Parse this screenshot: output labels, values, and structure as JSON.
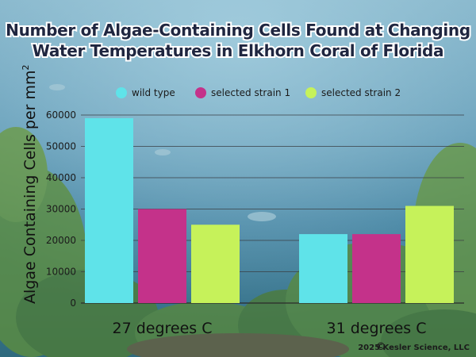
{
  "chart_data": {
    "type": "bar",
    "title_lines": [
      "Number of Algae-Containing Cells Found at Changing",
      "Water Temperatures in Elkhorn Coral of Florida"
    ],
    "ylabel": "Algae Containing Cells per mm",
    "ylabel_superscript": "2",
    "xlabel": "",
    "categories": [
      "27 degrees C",
      "31 degrees C"
    ],
    "series": [
      {
        "name": "wild type",
        "color": "#5fe3e9",
        "values": [
          59000,
          22000
        ]
      },
      {
        "name": "selected strain 1",
        "color": "#c4328a",
        "values": [
          30000,
          22000
        ]
      },
      {
        "name": "selected strain 2",
        "color": "#c6f25a",
        "values": [
          25000,
          31000
        ]
      }
    ],
    "ylim": [
      0,
      60000
    ],
    "yticks": [
      0,
      10000,
      20000,
      30000,
      40000,
      50000,
      60000
    ],
    "ytick_labels": [
      "0",
      "10000",
      "20000",
      "30000",
      "40000",
      "50000",
      "60000"
    ],
    "grid": true,
    "legend_position": "top",
    "copyright": "2025 Kesler Science, LLC",
    "copyright_symbol": "©"
  }
}
